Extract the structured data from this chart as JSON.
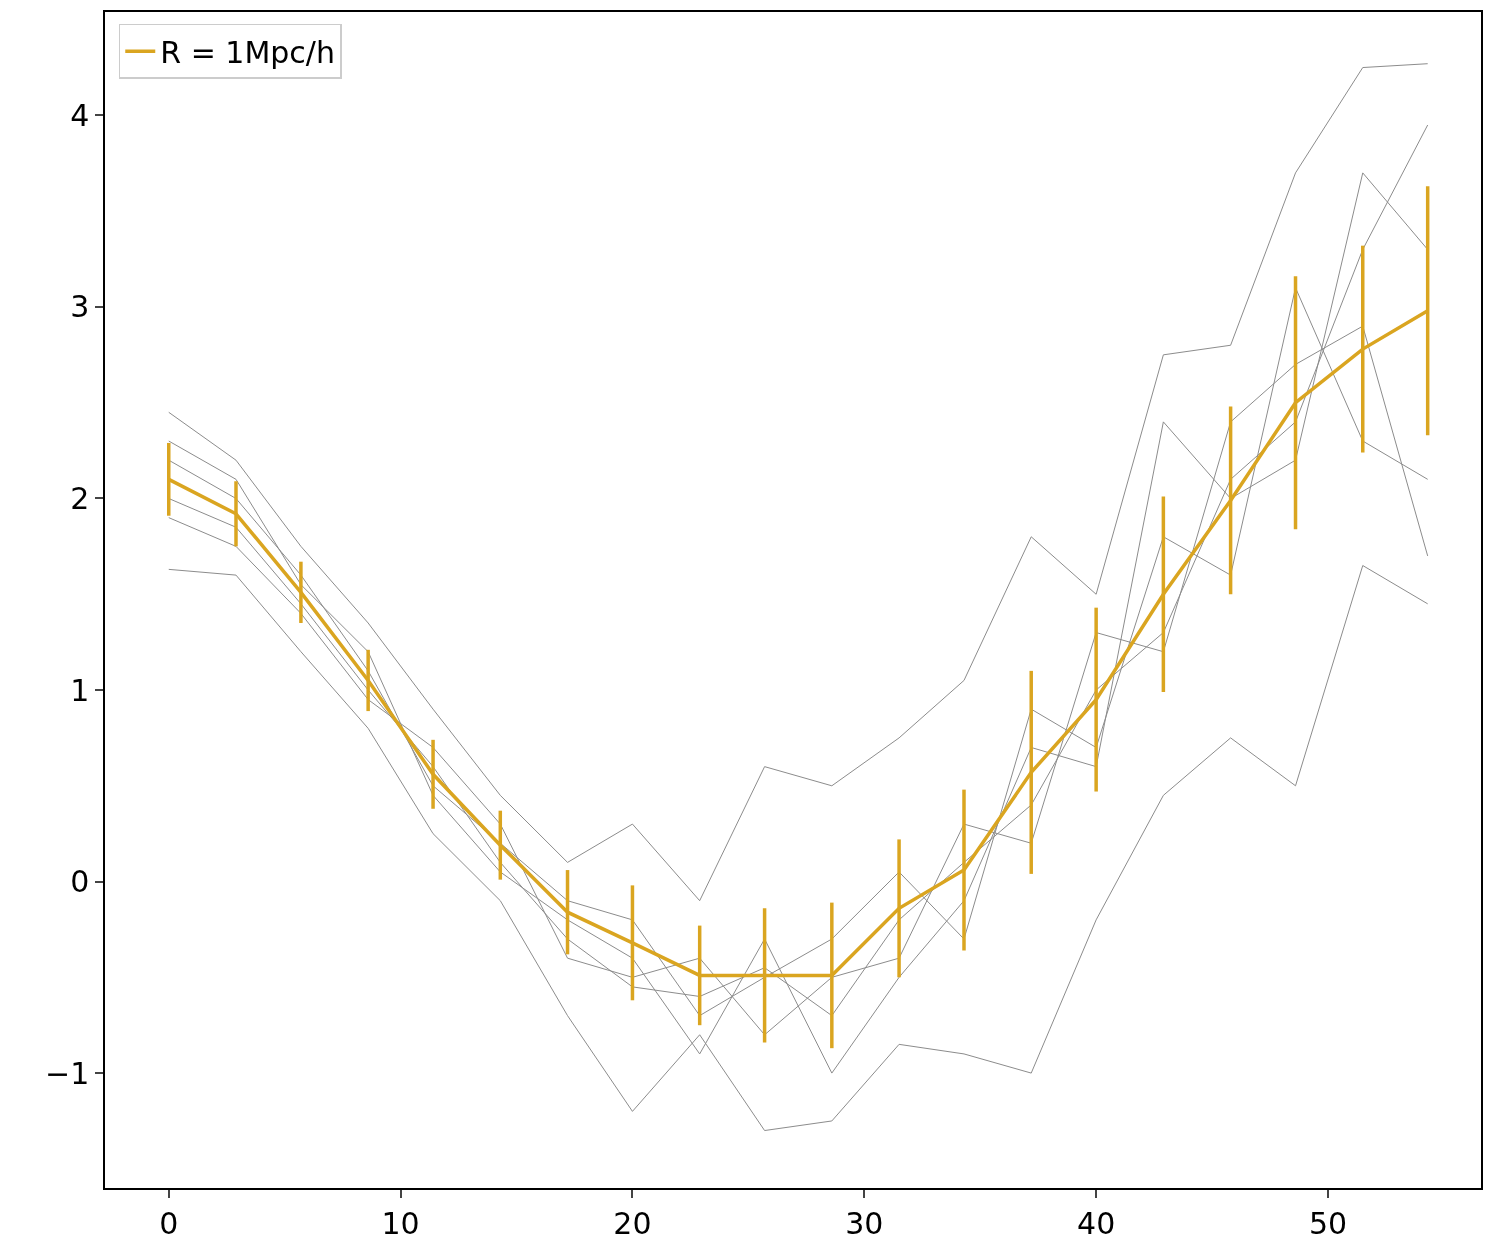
{
  "chart_data": {
    "type": "line",
    "x": [
      0,
      2.9,
      5.7,
      8.6,
      11.4,
      14.3,
      17.2,
      20.0,
      22.9,
      25.7,
      28.6,
      31.5,
      34.3,
      37.2,
      40.0,
      42.9,
      45.8,
      48.6,
      51.5,
      54.3
    ],
    "xlim": [
      -2.75,
      56.6
    ],
    "xticks": [
      0,
      10,
      20,
      30,
      40,
      50
    ],
    "ylim": [
      -1.6,
      4.54
    ],
    "yticks": [
      {
        "value": -1,
        "label": "−1"
      },
      0,
      1,
      2,
      3,
      4
    ],
    "grid": false,
    "legend": "top left",
    "marker": "none",
    "line_style": "solid",
    "series": [
      {
        "color": "#8c8c8c",
        "values": [
          2.45,
          2.2,
          1.75,
          1.35,
          0.9,
          0.45,
          0.1,
          0.3,
          -0.1,
          0.6,
          0.5,
          0.75,
          1.05,
          1.8,
          1.5,
          2.75,
          2.8,
          3.7,
          4.25,
          4.27
        ]
      },
      {
        "color": "#8c8c8c",
        "values": [
          1.63,
          1.6,
          1.2,
          0.8,
          0.25,
          -0.1,
          -0.7,
          -1.2,
          -0.8,
          -1.3,
          -1.25,
          -0.85,
          -0.9,
          -1.0,
          -0.2,
          0.45,
          0.75,
          0.5,
          1.65,
          1.45
        ]
      },
      {
        "color": "#8c8c8c",
        "values": [
          2.0,
          1.85,
          1.45,
          1.0,
          0.6,
          0.1,
          -0.3,
          -0.55,
          -0.6,
          -0.45,
          -0.7,
          -0.2,
          0.1,
          0.4,
          1.0,
          1.3,
          2.1,
          2.4,
          3.3,
          3.95
        ]
      },
      {
        "color": "#8c8c8c",
        "values": [
          2.2,
          2.0,
          1.6,
          1.1,
          0.5,
          0.2,
          -0.1,
          -0.2,
          -0.7,
          -0.5,
          -0.3,
          0.05,
          -0.3,
          0.9,
          0.7,
          1.8,
          1.6,
          3.1,
          2.3,
          2.1
        ]
      },
      {
        "color": "#8c8c8c",
        "values": [
          1.9,
          1.75,
          1.4,
          0.95,
          0.7,
          0.3,
          -0.4,
          -0.5,
          -0.4,
          -0.8,
          -0.5,
          -0.4,
          0.3,
          0.2,
          1.3,
          1.2,
          2.4,
          2.7,
          2.9,
          1.7
        ]
      },
      {
        "color": "#8c8c8c",
        "values": [
          2.3,
          2.1,
          1.55,
          1.2,
          0.45,
          0.05,
          -0.2,
          -0.4,
          -0.9,
          -0.3,
          -1.0,
          -0.5,
          -0.1,
          0.7,
          0.6,
          2.4,
          2.0,
          2.2,
          3.7,
          3.3
        ]
      },
      {
        "name": "R = 1Mpc/h",
        "color": "#daa520",
        "values": [
          2.1,
          1.92,
          1.51,
          1.05,
          0.56,
          0.19,
          -0.16,
          -0.32,
          -0.49,
          -0.49,
          -0.49,
          -0.14,
          0.06,
          0.57,
          0.95,
          1.5,
          1.99,
          2.5,
          2.78,
          2.98
        ],
        "errors": [
          0.19,
          0.17,
          0.16,
          0.16,
          0.18,
          0.18,
          0.22,
          0.3,
          0.26,
          0.35,
          0.38,
          0.36,
          0.42,
          0.53,
          0.48,
          0.51,
          0.49,
          0.66,
          0.54,
          0.65
        ]
      }
    ]
  }
}
